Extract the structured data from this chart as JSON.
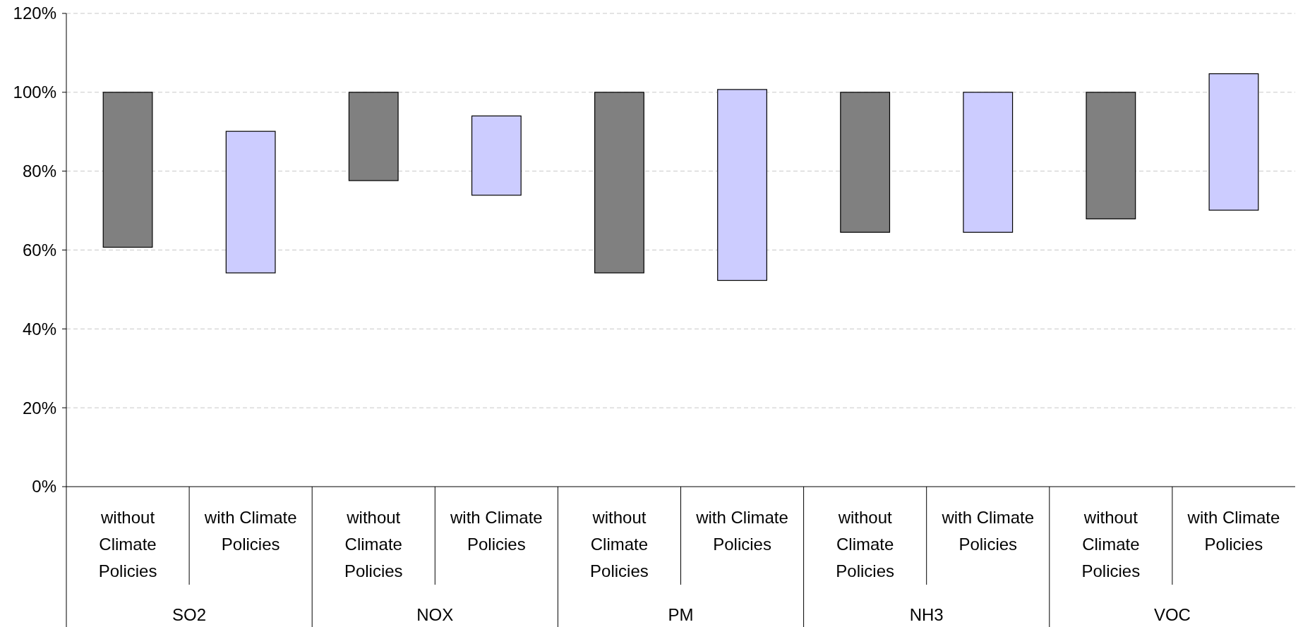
{
  "chart_data": {
    "type": "bar",
    "categories": [
      "without Climate Policies",
      "with Climate Policies",
      "without Climate Policies",
      "with Climate Policies",
      "without Climate Policies",
      "with Climate Policies",
      "without Climate Policies",
      "with Climate Policies",
      "without Climate Policies",
      "with Climate Policies"
    ],
    "base": [
      60.7,
      54.2,
      77.6,
      73.9,
      54.2,
      52.3,
      64.5,
      64.5,
      67.9,
      70.1
    ],
    "values": [
      39.3,
      35.9,
      22.4,
      20.1,
      45.8,
      48.4,
      35.5,
      35.5,
      32.1,
      34.6
    ],
    "colors": [
      "#808080",
      "#ccccff",
      "#808080",
      "#ccccff",
      "#808080",
      "#ccccff",
      "#808080",
      "#ccccff",
      "#808080",
      "#ccccff"
    ],
    "ylim": [
      0,
      120
    ],
    "yticks": [
      {
        "value": 0,
        "label": "0%"
      },
      {
        "value": 20,
        "label": "20%"
      },
      {
        "value": 40,
        "label": "40%"
      },
      {
        "value": 60,
        "label": "60%"
      },
      {
        "value": 80,
        "label": "80%"
      },
      {
        "value": 100,
        "label": "100%"
      },
      {
        "value": 120,
        "label": "120%"
      }
    ],
    "grid": "y",
    "annotations": [
      "SO2",
      "NOX",
      "PM",
      "NH3",
      "VOC"
    ]
  }
}
